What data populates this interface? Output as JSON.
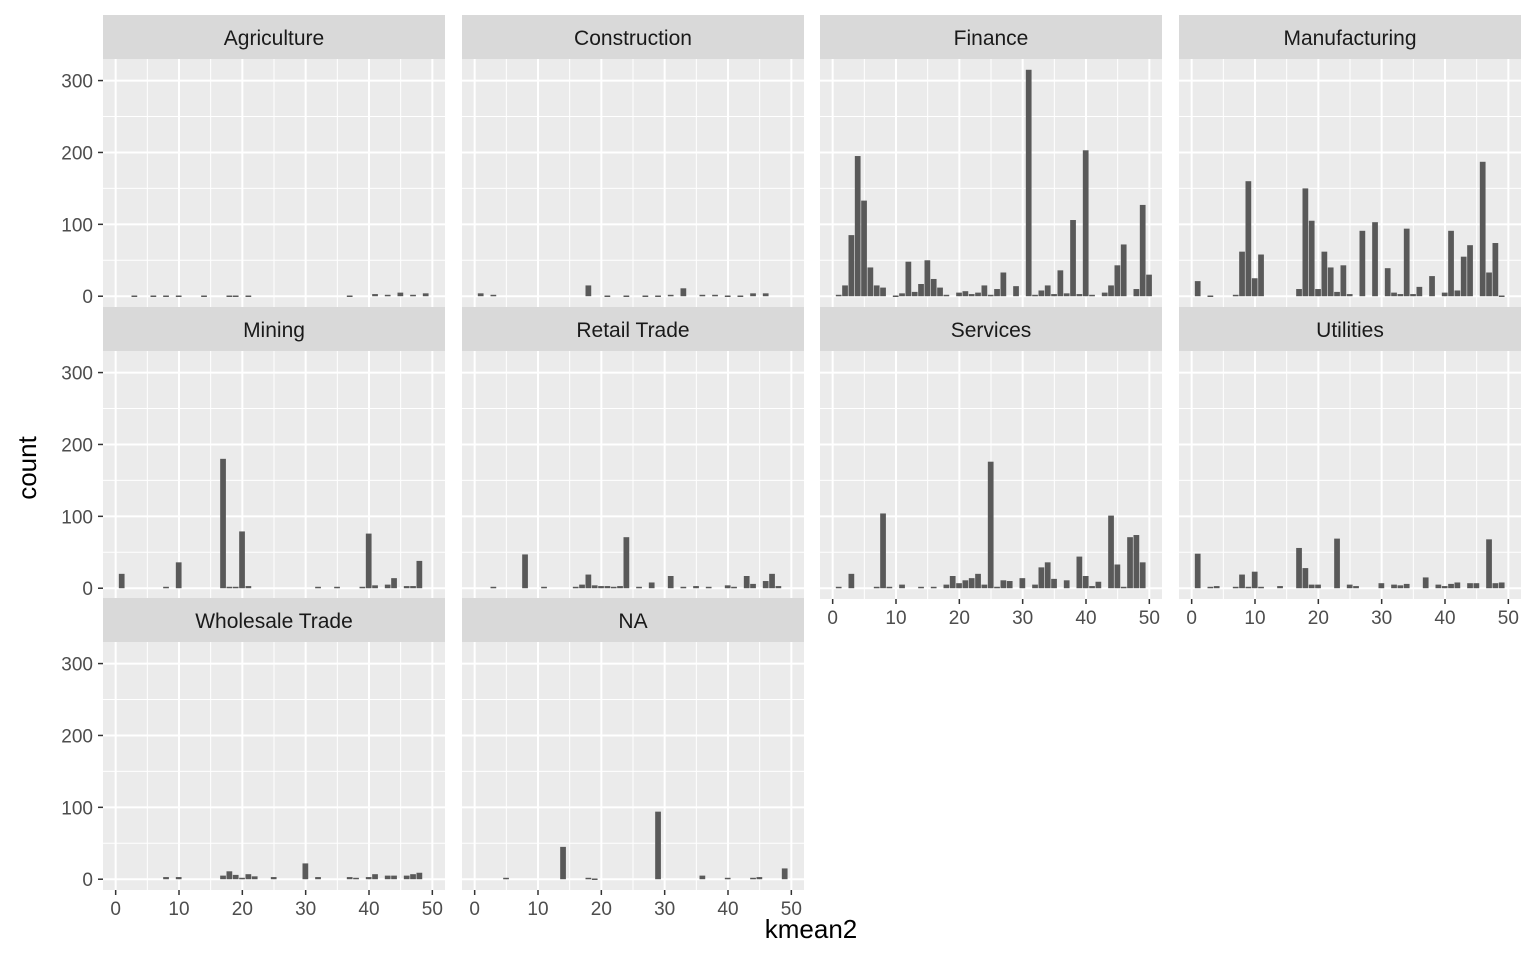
{
  "chart_data": {
    "type": "bar",
    "facet_variable": "industry",
    "xlabel": "kmean2",
    "ylabel": "count",
    "xlim": [
      -2,
      52
    ],
    "ylim": [
      -15,
      330
    ],
    "x_ticks": [
      0,
      10,
      20,
      30,
      40,
      50
    ],
    "y_ticks": [
      0,
      100,
      200,
      300
    ],
    "grid": true,
    "colors": {
      "bar": "#595959",
      "panel": "#ebebeb",
      "strip": "#d9d9d9",
      "grid": "#ffffff"
    },
    "facets": [
      {
        "name": "Agriculture",
        "bars": [
          [
            3,
            1
          ],
          [
            6,
            1
          ],
          [
            8,
            1
          ],
          [
            10,
            1
          ],
          [
            14,
            1
          ],
          [
            18,
            1
          ],
          [
            19,
            1
          ],
          [
            21,
            1
          ],
          [
            37,
            1
          ],
          [
            41,
            3
          ],
          [
            43,
            2
          ],
          [
            45,
            5
          ],
          [
            47,
            2
          ],
          [
            49,
            4
          ]
        ]
      },
      {
        "name": "Construction",
        "bars": [
          [
            1,
            4
          ],
          [
            3,
            2
          ],
          [
            18,
            15
          ],
          [
            21,
            1
          ],
          [
            24,
            1
          ],
          [
            27,
            1
          ],
          [
            29,
            1
          ],
          [
            31,
            2
          ],
          [
            33,
            11
          ],
          [
            36,
            2
          ],
          [
            38,
            2
          ],
          [
            40,
            1
          ],
          [
            42,
            1
          ],
          [
            44,
            4
          ],
          [
            46,
            4
          ]
        ]
      },
      {
        "name": "Finance",
        "bars": [
          [
            1,
            2
          ],
          [
            2,
            15
          ],
          [
            3,
            85
          ],
          [
            4,
            195
          ],
          [
            5,
            133
          ],
          [
            6,
            40
          ],
          [
            7,
            15
          ],
          [
            8,
            12
          ],
          [
            10,
            1
          ],
          [
            11,
            4
          ],
          [
            12,
            48
          ],
          [
            13,
            6
          ],
          [
            14,
            17
          ],
          [
            15,
            50
          ],
          [
            16,
            24
          ],
          [
            17,
            12
          ],
          [
            18,
            2
          ],
          [
            20,
            5
          ],
          [
            21,
            7
          ],
          [
            22,
            3
          ],
          [
            23,
            5
          ],
          [
            24,
            15
          ],
          [
            25,
            2
          ],
          [
            26,
            10
          ],
          [
            27,
            33
          ],
          [
            29,
            14
          ],
          [
            31,
            315
          ],
          [
            32,
            2
          ],
          [
            33,
            8
          ],
          [
            34,
            15
          ],
          [
            35,
            3
          ],
          [
            36,
            36
          ],
          [
            37,
            4
          ],
          [
            38,
            106
          ],
          [
            39,
            3
          ],
          [
            40,
            203
          ],
          [
            41,
            2
          ],
          [
            43,
            5
          ],
          [
            44,
            15
          ],
          [
            45,
            43
          ],
          [
            46,
            72
          ],
          [
            48,
            10
          ],
          [
            49,
            127
          ],
          [
            50,
            30
          ]
        ]
      },
      {
        "name": "Manufacturing",
        "bars": [
          [
            1,
            21
          ],
          [
            3,
            1
          ],
          [
            7,
            2
          ],
          [
            8,
            62
          ],
          [
            9,
            160
          ],
          [
            10,
            25
          ],
          [
            11,
            58
          ],
          [
            17,
            10
          ],
          [
            18,
            150
          ],
          [
            19,
            105
          ],
          [
            20,
            10
          ],
          [
            21,
            62
          ],
          [
            22,
            40
          ],
          [
            23,
            6
          ],
          [
            24,
            43
          ],
          [
            25,
            3
          ],
          [
            27,
            91
          ],
          [
            29,
            103
          ],
          [
            31,
            39
          ],
          [
            32,
            5
          ],
          [
            33,
            3
          ],
          [
            34,
            94
          ],
          [
            35,
            3
          ],
          [
            36,
            13
          ],
          [
            38,
            28
          ],
          [
            40,
            5
          ],
          [
            41,
            91
          ],
          [
            42,
            8
          ],
          [
            43,
            55
          ],
          [
            44,
            71
          ],
          [
            46,
            187
          ],
          [
            47,
            33
          ],
          [
            48,
            74
          ],
          [
            49,
            1
          ]
        ]
      },
      {
        "name": "Mining",
        "bars": [
          [
            1,
            20
          ],
          [
            8,
            2
          ],
          [
            10,
            36
          ],
          [
            17,
            180
          ],
          [
            18,
            2
          ],
          [
            19,
            2
          ],
          [
            20,
            79
          ],
          [
            21,
            3
          ],
          [
            32,
            2
          ],
          [
            35,
            2
          ],
          [
            39,
            2
          ],
          [
            40,
            76
          ],
          [
            41,
            4
          ],
          [
            43,
            5
          ],
          [
            44,
            14
          ],
          [
            46,
            3
          ],
          [
            47,
            3
          ],
          [
            48,
            38
          ]
        ]
      },
      {
        "name": "Retail Trade",
        "bars": [
          [
            3,
            2
          ],
          [
            8,
            47
          ],
          [
            11,
            2
          ],
          [
            16,
            2
          ],
          [
            17,
            5
          ],
          [
            18,
            19
          ],
          [
            19,
            4
          ],
          [
            20,
            3
          ],
          [
            21,
            3
          ],
          [
            22,
            2
          ],
          [
            23,
            3
          ],
          [
            24,
            71
          ],
          [
            26,
            2
          ],
          [
            28,
            8
          ],
          [
            31,
            17
          ],
          [
            33,
            2
          ],
          [
            35,
            3
          ],
          [
            37,
            2
          ],
          [
            40,
            4
          ],
          [
            41,
            2
          ],
          [
            43,
            17
          ],
          [
            44,
            6
          ],
          [
            46,
            10
          ],
          [
            47,
            20
          ],
          [
            48,
            3
          ]
        ]
      },
      {
        "name": "Services",
        "bars": [
          [
            1,
            2
          ],
          [
            3,
            20
          ],
          [
            7,
            2
          ],
          [
            8,
            104
          ],
          [
            9,
            2
          ],
          [
            11,
            5
          ],
          [
            14,
            2
          ],
          [
            16,
            2
          ],
          [
            18,
            5
          ],
          [
            19,
            17
          ],
          [
            20,
            7
          ],
          [
            21,
            11
          ],
          [
            22,
            14
          ],
          [
            23,
            20
          ],
          [
            24,
            5
          ],
          [
            25,
            176
          ],
          [
            26,
            2
          ],
          [
            27,
            11
          ],
          [
            28,
            10
          ],
          [
            30,
            14
          ],
          [
            32,
            5
          ],
          [
            33,
            29
          ],
          [
            34,
            36
          ],
          [
            35,
            13
          ],
          [
            37,
            11
          ],
          [
            39,
            44
          ],
          [
            40,
            17
          ],
          [
            41,
            3
          ],
          [
            42,
            9
          ],
          [
            44,
            101
          ],
          [
            45,
            33
          ],
          [
            46,
            2
          ],
          [
            47,
            71
          ],
          [
            48,
            74
          ],
          [
            49,
            36
          ]
        ]
      },
      {
        "name": "Utilities",
        "bars": [
          [
            1,
            48
          ],
          [
            3,
            2
          ],
          [
            4,
            3
          ],
          [
            7,
            2
          ],
          [
            8,
            19
          ],
          [
            9,
            2
          ],
          [
            10,
            23
          ],
          [
            11,
            2
          ],
          [
            14,
            3
          ],
          [
            17,
            56
          ],
          [
            18,
            28
          ],
          [
            19,
            5
          ],
          [
            20,
            5
          ],
          [
            23,
            69
          ],
          [
            25,
            5
          ],
          [
            26,
            3
          ],
          [
            30,
            7
          ],
          [
            32,
            5
          ],
          [
            33,
            4
          ],
          [
            34,
            6
          ],
          [
            37,
            15
          ],
          [
            39,
            5
          ],
          [
            40,
            3
          ],
          [
            41,
            6
          ],
          [
            42,
            8
          ],
          [
            44,
            7
          ],
          [
            45,
            7
          ],
          [
            47,
            68
          ],
          [
            48,
            7
          ],
          [
            49,
            8
          ]
        ]
      },
      {
        "name": "Wholesale Trade",
        "bars": [
          [
            8,
            3
          ],
          [
            10,
            3
          ],
          [
            17,
            5
          ],
          [
            18,
            11
          ],
          [
            19,
            6
          ],
          [
            20,
            2
          ],
          [
            21,
            7
          ],
          [
            22,
            4
          ],
          [
            25,
            3
          ],
          [
            30,
            22
          ],
          [
            32,
            3
          ],
          [
            37,
            3
          ],
          [
            38,
            2
          ],
          [
            40,
            3
          ],
          [
            41,
            7
          ],
          [
            43,
            5
          ],
          [
            44,
            5
          ],
          [
            46,
            5
          ],
          [
            47,
            7
          ],
          [
            48,
            9
          ]
        ]
      },
      {
        "name": "NA",
        "bars": [
          [
            5,
            2
          ],
          [
            14,
            45
          ],
          [
            18,
            2
          ],
          [
            19,
            1
          ],
          [
            29,
            94
          ],
          [
            36,
            5
          ],
          [
            40,
            2
          ],
          [
            44,
            2
          ],
          [
            45,
            3
          ],
          [
            49,
            15
          ]
        ]
      }
    ]
  }
}
